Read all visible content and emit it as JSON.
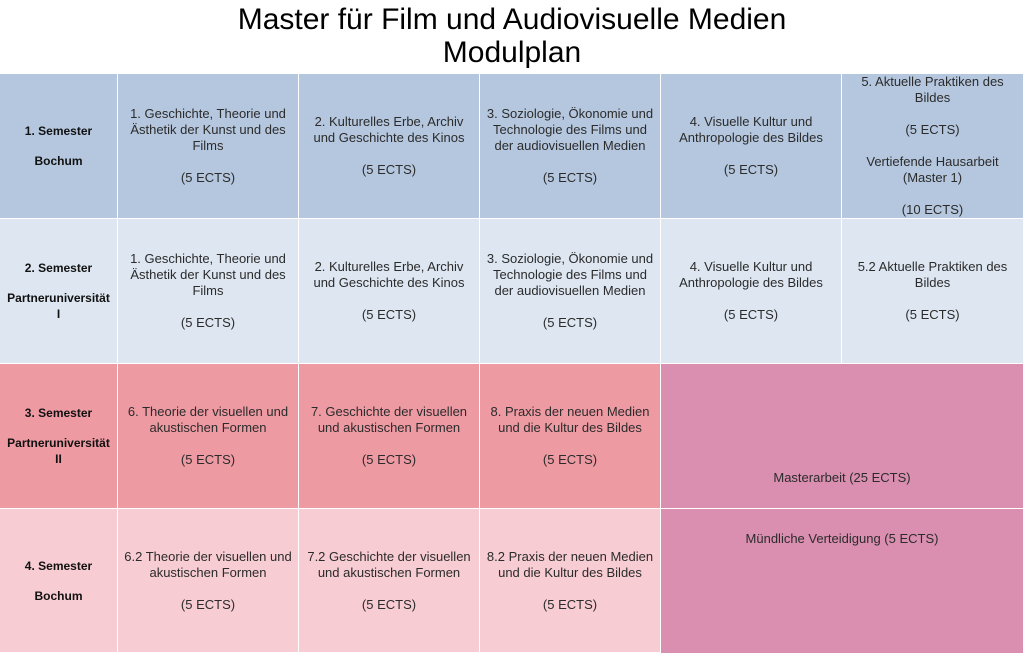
{
  "title": {
    "line1": "Master für Film und Audiovisuelle Medien",
    "line2": "Modulplan"
  },
  "colors": {
    "semester1": "#b5c7de",
    "semester2": "#dde6f1",
    "semester3": "#ee9aa3",
    "semester4": "#f7ccd2",
    "thesis": "#da8fb1"
  },
  "rows": [
    {
      "semester": "1. Semester",
      "location": "Bochum",
      "modules": [
        {
          "name": "1. Geschichte, Theorie und Ästhetik der Kunst und des Films",
          "ects": "(5 ECTS)"
        },
        {
          "name": "2. Kulturelles Erbe, Archiv und Geschichte des Kinos",
          "ects": "(5 ECTS)"
        },
        {
          "name": "3. Soziologie, Ökonomie und Technologie des Films und der audiovisuellen Medien",
          "ects": "(5 ECTS)"
        },
        {
          "name": "4. Visuelle Kultur und Anthropologie des Bildes",
          "ects": "(5 ECTS)"
        },
        {
          "name": "5. Aktuelle Praktiken des Bildes",
          "ects": "(5 ECTS)",
          "extra": "Vertiefende Hausarbeit (Master 1)",
          "extra_ects": "(10 ECTS)"
        }
      ]
    },
    {
      "semester": "2. Semester",
      "location": "Partneruniversität I",
      "modules": [
        {
          "name": "1. Geschichte, Theorie und Ästhetik der Kunst und des Films",
          "ects": "(5 ECTS)"
        },
        {
          "name": "2. Kulturelles Erbe, Archiv und Geschichte des Kinos",
          "ects": "(5 ECTS)"
        },
        {
          "name": "3. Soziologie, Ökonomie und Technologie des Films und der audiovisuellen Medien",
          "ects": "(5 ECTS)"
        },
        {
          "name": "4. Visuelle Kultur und Anthropologie des Bildes",
          "ects": "(5 ECTS)"
        },
        {
          "name": "5.2 Aktuelle Praktiken des Bildes",
          "ects": "(5 ECTS)"
        }
      ]
    },
    {
      "semester": "3. Semester",
      "location": "Partneruniversität II",
      "modules": [
        {
          "name": "6. Theorie der visuellen und akustischen Formen",
          "ects": "(5 ECTS)"
        },
        {
          "name": "7. Geschichte der visuellen und akustischen Formen",
          "ects": "(5 ECTS)"
        },
        {
          "name": "8. Praxis der neuen Medien und die Kultur des Bildes",
          "ects": "(5 ECTS)"
        }
      ]
    },
    {
      "semester": "4. Semester",
      "location": "Bochum",
      "modules": [
        {
          "name": "6.2 Theorie der visuellen und akustischen Formen",
          "ects": "(5 ECTS)"
        },
        {
          "name": "7.2 Geschichte der visuellen und akustischen Formen",
          "ects": "(5 ECTS)"
        },
        {
          "name": "8.2 Praxis der neuen Medien und die Kultur des Bildes",
          "ects": "(5 ECTS)"
        }
      ]
    }
  ],
  "thesis": {
    "masterarbeit": "Masterarbeit (25 ECTS)",
    "verteidigung": "Mündliche Verteidigung (5 ECTS)"
  }
}
